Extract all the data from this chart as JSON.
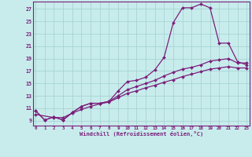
{
  "xlabel": "Windchill (Refroidissement éolien,°C)",
  "bg_color": "#c8ecec",
  "line_color": "#7b1f7b",
  "grid_color": "#a8d4d4",
  "x_ticks": [
    0,
    1,
    2,
    3,
    4,
    5,
    6,
    7,
    8,
    9,
    10,
    11,
    12,
    13,
    14,
    15,
    16,
    17,
    18,
    19,
    20,
    21,
    22,
    23
  ],
  "y_ticks": [
    9,
    11,
    13,
    15,
    17,
    19,
    21,
    23,
    25,
    27
  ],
  "xlim": [
    -0.3,
    23.3
  ],
  "ylim": [
    8.2,
    28.2
  ],
  "line1_x": [
    0,
    1,
    2,
    3,
    4,
    5,
    6,
    7,
    8,
    9,
    10,
    11,
    12,
    13,
    14,
    15,
    16,
    17,
    18,
    19,
    20,
    21,
    22,
    23
  ],
  "line1_y": [
    10.6,
    9.1,
    9.6,
    9.1,
    10.3,
    11.3,
    11.8,
    11.8,
    12.1,
    13.8,
    15.3,
    15.5,
    16.0,
    17.2,
    19.2,
    24.8,
    27.2,
    27.2,
    27.8,
    27.2,
    21.5,
    21.5,
    18.5,
    18.0
  ],
  "line2_x": [
    0,
    1,
    2,
    3,
    4,
    5,
    6,
    7,
    8,
    9,
    10,
    11,
    12,
    13,
    14,
    15,
    16,
    17,
    18,
    19,
    20,
    21,
    22,
    23
  ],
  "line2_y": [
    10.6,
    9.1,
    9.6,
    9.1,
    10.3,
    11.3,
    11.8,
    11.8,
    12.1,
    13.0,
    14.0,
    14.5,
    15.0,
    15.5,
    16.2,
    16.8,
    17.3,
    17.6,
    18.0,
    18.6,
    18.8,
    19.0,
    18.3,
    18.3
  ],
  "line3_x": [
    0,
    2,
    3,
    4,
    5,
    6,
    7,
    8,
    9,
    10,
    11,
    12,
    13,
    14,
    15,
    16,
    17,
    18,
    19,
    20,
    21,
    22,
    23
  ],
  "line3_y": [
    10.0,
    9.5,
    9.5,
    10.2,
    10.8,
    11.3,
    11.7,
    12.0,
    12.7,
    13.4,
    13.8,
    14.3,
    14.7,
    15.2,
    15.6,
    16.1,
    16.5,
    16.9,
    17.3,
    17.5,
    17.7,
    17.5,
    17.5
  ]
}
